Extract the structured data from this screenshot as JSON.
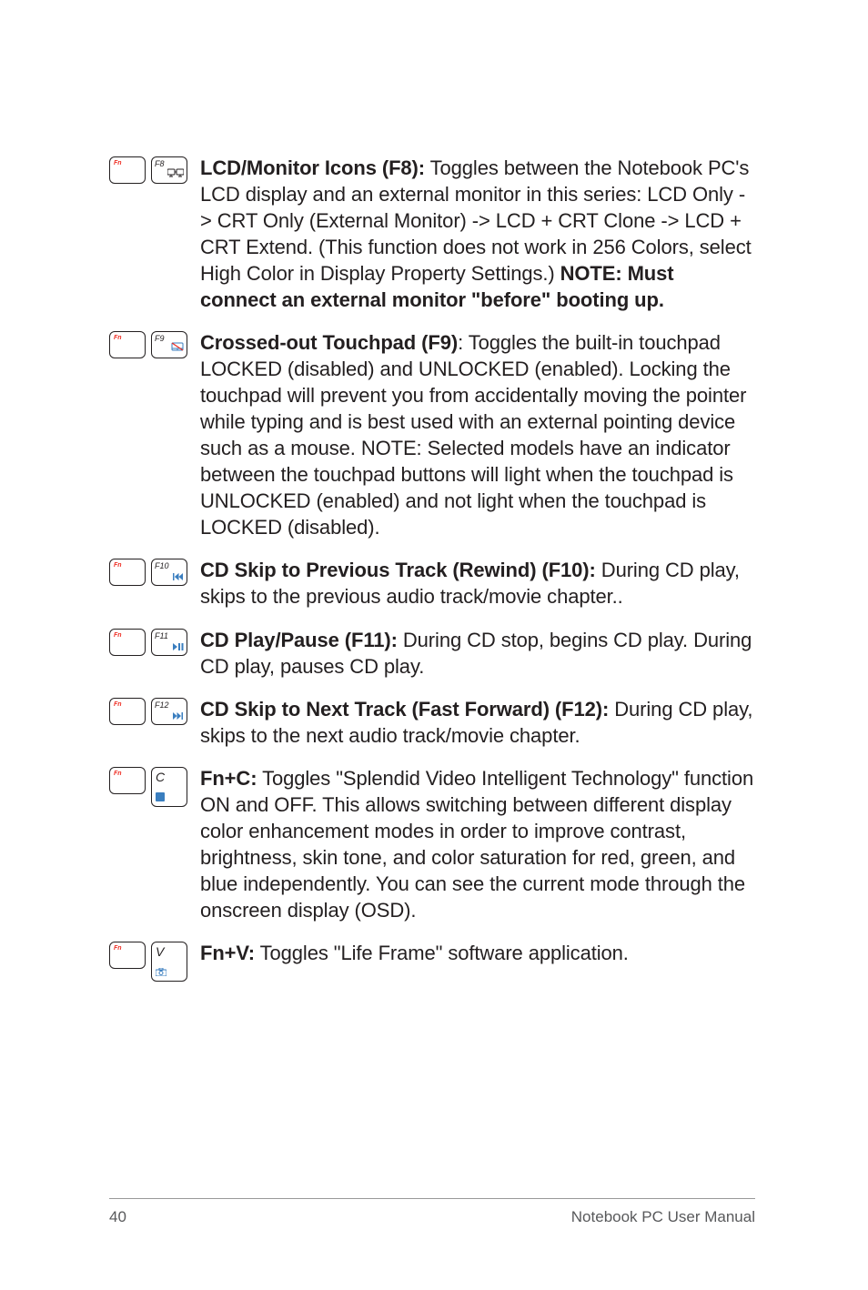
{
  "items": [
    {
      "key1": "Fn",
      "key2_f": "F8",
      "desc_html": "<b>LCD/Monitor Icons (F8):</b> Toggles between the Notebook PC's LCD display and an external monitor in this series: LCD Only -> CRT Only (External Monitor) -> LCD + CRT Clone -> LCD + CRT Extend. (This function does not work in 256 Colors, select High Color in Display Property Settings.) <b>NOTE: Must connect an external monitor \"before\" booting up.</b>"
    },
    {
      "key1": "Fn",
      "key2_f": "F9",
      "desc_html": "<b>Crossed-out Touchpad (F9)</b>: Toggles the built-in touchpad LOCKED (disabled) and UNLOCKED (enabled). Locking the touchpad will prevent you from accidentally moving the pointer while typing and is best used with an external pointing device such as a mouse. NOTE: Selected models have an indicator between the touchpad buttons will light when the touchpad is UNLOCKED (enabled) and not light when the touchpad is LOCKED (disabled)."
    },
    {
      "key1": "Fn",
      "key2_f": "F10",
      "desc_html": "<b>CD Skip to Previous Track (Rewind) (F10):</b>  During CD play, skips to the previous audio track/movie chapter.."
    },
    {
      "key1": "Fn",
      "key2_f": "F11",
      "desc_html": "<b>CD Play/Pause (F11):</b>  During CD stop, begins CD play. During CD play, pauses CD play."
    },
    {
      "key1": "Fn",
      "key2_f": "F12",
      "desc_html": "<b>CD Skip to Next Track (Fast Forward) (F12):</b> During CD play, skips to the next audio track/movie chapter."
    },
    {
      "key1": "Fn",
      "key2_letter": "C",
      "tall": true,
      "desc_html": "<b>Fn+C:</b> Toggles \"Splendid Video Intelligent Technology\" function ON and OFF. This allows switching between different display color enhancement modes in order to improve contrast, brightness, skin tone, and color saturation for red, green, and blue independently. You can see the current mode through the onscreen display (OSD)."
    },
    {
      "key1": "Fn",
      "key2_letter": "V",
      "tall": true,
      "desc_html": "<b>Fn+V:</b> Toggles \"Life Frame\" software application."
    }
  ],
  "footer": {
    "page": "40",
    "title": "Notebook PC User Manual"
  },
  "colors": {
    "text": "#231f20",
    "accent": "#ee2e24",
    "footer_text": "#58595b",
    "icon_blue": "#3a7ebf"
  }
}
